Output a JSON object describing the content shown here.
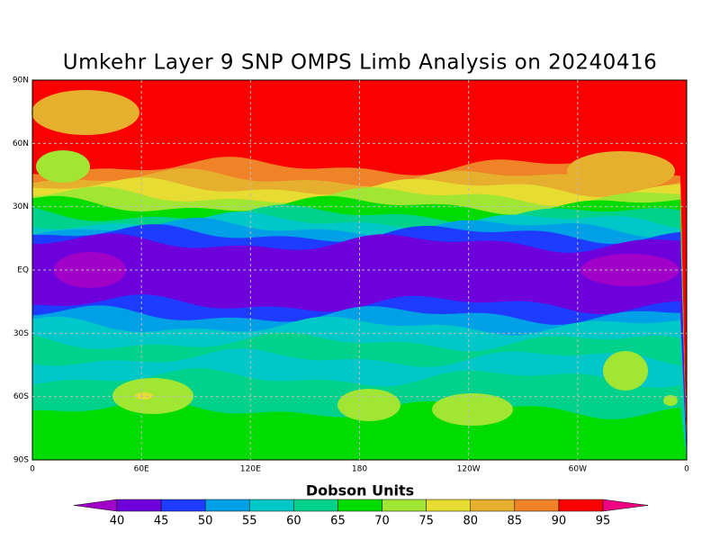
{
  "map": {
    "title": "Umkehr Layer 9 SNP OMPS Limb Analysis on 20240416",
    "lon_labels": [
      "0",
      "60E",
      "120E",
      "180",
      "120W",
      "60W",
      "0"
    ],
    "lat_labels": [
      "90N",
      "60N",
      "30N",
      "EQ",
      "30S",
      "60S",
      "90S"
    ],
    "grid": true,
    "colorbar": {
      "label": "Dobson Units",
      "levels": [
        40,
        45,
        50,
        55,
        60,
        65,
        70,
        75,
        80,
        85,
        90,
        95
      ],
      "colors": [
        "#a000c8",
        "#6e00dc",
        "#1e3cff",
        "#00a0e6",
        "#00c8c8",
        "#00d28c",
        "#00dc00",
        "#a0e632",
        "#e6dc32",
        "#e6af2d",
        "#f08228",
        "#fa0000",
        "#f00082"
      ]
    }
  }
}
